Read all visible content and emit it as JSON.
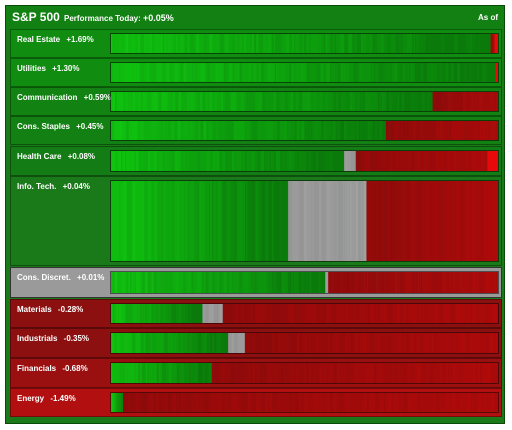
{
  "header": {
    "title": "S&P 500",
    "performance_label": "Performance Today:",
    "performance_value": "+0.05%",
    "as_of": "As of"
  },
  "sectors": [
    {
      "name": "Real Estate",
      "change": "+1.69%",
      "row_color": "#108c10",
      "green": 0.975,
      "gray": 0.0,
      "bright_red": 0.01
    },
    {
      "name": "Utilities",
      "change": "+1.30%",
      "row_color": "#108c10",
      "green": 0.985,
      "gray": 0.0,
      "bright_red": 0.01
    },
    {
      "name": "Communication",
      "change": "+0.59%",
      "row_color": "#128312",
      "green": 0.825,
      "gray": 0.0,
      "bright_red": 0.0
    },
    {
      "name": "Cons. Staples",
      "change": "+0.45%",
      "row_color": "#128012",
      "green": 0.705,
      "gray": 0.0,
      "bright_red": 0.0
    },
    {
      "name": "Health Care",
      "change": "+0.08%",
      "row_color": "#147c14",
      "green": 0.595,
      "gray": 0.035,
      "bright_red": 0.03
    },
    {
      "name": "Info. Tech.",
      "change": "+0.04%",
      "row_color": "#1a7a1a",
      "green": 0.45,
      "gray": 0.205,
      "bright_red": 0.0
    },
    {
      "name": "Cons. Discret.",
      "change": "+0.01%",
      "row_color": "#9a9a9a",
      "green": 0.55,
      "gray": 0.01,
      "bright_red": 0.0
    },
    {
      "name": "Materials",
      "change": "-0.28%",
      "row_color": "#8c1010",
      "green": 0.235,
      "gray": 0.05,
      "bright_red": 0.0
    },
    {
      "name": "Industrials",
      "change": "-0.35%",
      "row_color": "#8c1010",
      "green": 0.3,
      "gray": 0.045,
      "bright_red": 0.0
    },
    {
      "name": "Financials",
      "change": "-0.68%",
      "row_color": "#9a1010",
      "green": 0.26,
      "gray": 0.0,
      "bright_red": 0.0
    },
    {
      "name": "Energy",
      "change": "-1.49%",
      "row_color": "#b21010",
      "green": 0.03,
      "gray": 0.0,
      "bright_red": 0.0
    }
  ],
  "colors": {
    "bright_green": "#10c810",
    "mid_green": "#0a9a0a",
    "dark_green": "#0a7a0a",
    "gray": "#a0a0a0",
    "dark_red": "#8a0a0a",
    "mid_red": "#b00a0a",
    "bright_red": "#e80a0a"
  }
}
